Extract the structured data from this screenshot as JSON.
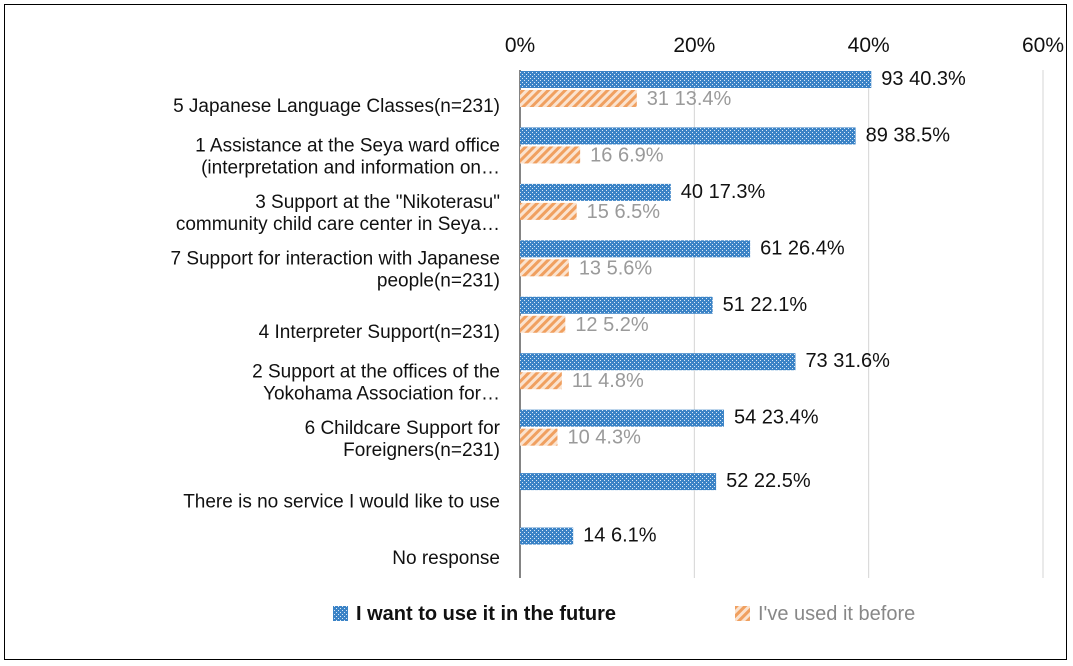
{
  "chart_data": {
    "type": "bar",
    "orientation": "horizontal",
    "xlim": [
      0,
      60
    ],
    "x_ticks": [
      "0%",
      "20%",
      "40%",
      "60%"
    ],
    "x_tick_values": [
      0,
      20,
      40,
      60
    ],
    "axis_position": "top",
    "grid": true,
    "legend_position": "bottom",
    "categories": [
      [
        "5 Japanese Language Classes(n=231)"
      ],
      [
        "1 Assistance at the Seya ward office",
        "(interpretation and information on…"
      ],
      [
        "3 Support at the \"Nikoterasu\"",
        "community child care center in Seya…"
      ],
      [
        "7 Support for interaction with Japanese",
        "people(n=231)"
      ],
      [
        "4 Interpreter Support(n=231)"
      ],
      [
        "2 Support at the offices of the",
        "Yokohama Association for…"
      ],
      [
        "6 Childcare Support for",
        "Foreigners(n=231)"
      ],
      [
        "There is no service I would like to use"
      ],
      [
        "No response"
      ]
    ],
    "series": [
      {
        "name": "I want to use it in the future",
        "color": "#3b83c6",
        "values": [
          40.3,
          38.5,
          17.3,
          26.4,
          22.1,
          31.6,
          23.4,
          22.5,
          6.1
        ],
        "labels": [
          "93 40.3%",
          "89 38.5%",
          "40 17.3%",
          "61 26.4%",
          "51 22.1%",
          "73 31.6%",
          "54 23.4%",
          "52 22.5%",
          "14 6.1%"
        ]
      },
      {
        "name": "I've used it before",
        "color": "#f0a060",
        "values": [
          13.4,
          6.9,
          6.5,
          5.6,
          5.2,
          4.8,
          4.3,
          null,
          null
        ],
        "labels": [
          "31 13.4%",
          "16 6.9%",
          "15 6.5%",
          "13 5.6%",
          "12 5.2%",
          "11 4.8%",
          "10 4.3%",
          null,
          null
        ]
      }
    ]
  }
}
